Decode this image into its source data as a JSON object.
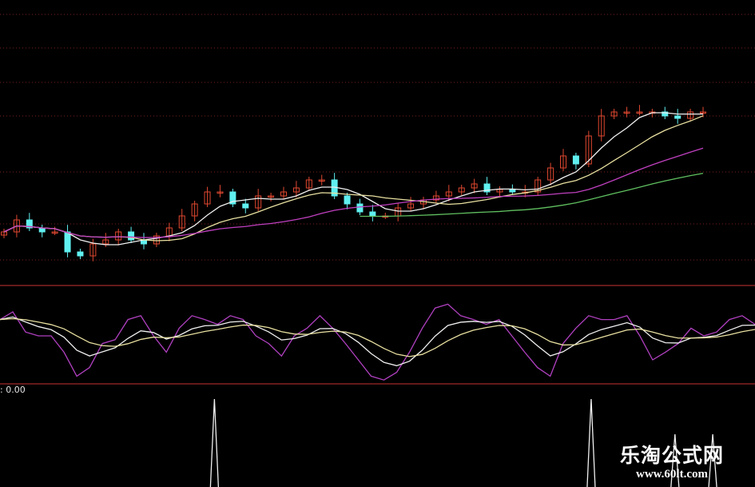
{
  "chart_data": [
    {
      "type": "candlestick",
      "panel": "price",
      "closes": [
        27.5,
        31.25,
        28.75,
        27.5,
        27.5,
        21.25,
        20,
        23.75,
        25,
        27.5,
        25,
        23.75,
        26.25,
        28.75,
        32.5,
        36.25,
        40,
        40,
        36.25,
        35,
        38.75,
        38.75,
        40,
        41.25,
        43.75,
        43.75,
        38.75,
        36.25,
        33.75,
        32.5,
        32.5,
        35,
        36.25,
        37.5,
        38.75,
        40,
        41.25,
        42.5,
        40,
        40.75,
        40,
        40,
        43.75,
        47.5,
        51.25,
        48.75,
        57.5,
        63.75,
        65,
        65,
        65,
        65,
        63.75,
        63,
        65,
        65
      ],
      "moving_averages": [
        {
          "period": 5,
          "color": "#f0f0f0"
        },
        {
          "period": 10,
          "color": "#e8e0a0"
        },
        {
          "period": 20,
          "color": "#c040c0"
        },
        {
          "period": 40,
          "color": "#60c060"
        }
      ],
      "up_color": "#e04830",
      "down_color": "#60f0f0",
      "grid": true
    },
    {
      "type": "line",
      "panel": "oscillator",
      "values": [
        67,
        75,
        54,
        50,
        50,
        33,
        8,
        17,
        42,
        46,
        67,
        71,
        50,
        33,
        58,
        71,
        67,
        62,
        71,
        67,
        50,
        42,
        29,
        50,
        58,
        71,
        58,
        42,
        25,
        8,
        4,
        12,
        33,
        58,
        79,
        83,
        71,
        67,
        62,
        67,
        50,
        33,
        17,
        8,
        42,
        58,
        71,
        67,
        67,
        71,
        50,
        25,
        33,
        42,
        58,
        50,
        54,
        67,
        71,
        62
      ],
      "colors": [
        "#b040c0",
        "#f0f0f0",
        "#e8e0a0"
      ]
    },
    {
      "type": "line",
      "panel": "signal",
      "value_label": "0.00",
      "spikes": [
        {
          "position": 0.284,
          "value": 1
        },
        {
          "position": 0.783,
          "value": 1
        },
        {
          "position": 0.894,
          "value": 0.6
        },
        {
          "position": 0.944,
          "value": 0.6
        }
      ],
      "color": "#f0f0f0"
    }
  ],
  "watermark": {
    "name": "乐淘公式网",
    "url": "www.60lt.com"
  }
}
